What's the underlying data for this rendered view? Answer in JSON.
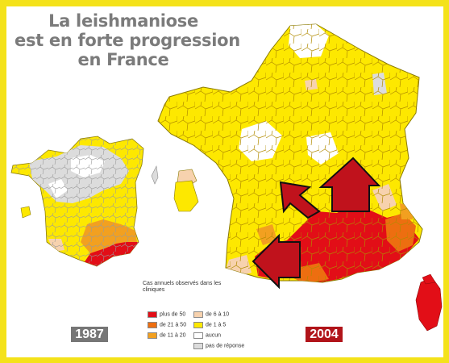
{
  "title": {
    "line1": "La leishmaniose",
    "line2": "est en forte progression",
    "line3": "en France"
  },
  "legend": {
    "title": "Cas annuels observés dans les cliniques",
    "items": [
      {
        "label": "plus de 50",
        "color": "#e20e17"
      },
      {
        "label": "de 21 à 50",
        "color": "#ed6e10"
      },
      {
        "label": "de 11 à 20",
        "color": "#f2a020"
      },
      {
        "label": "de 6 à 10",
        "color": "#f7d2ae"
      },
      {
        "label": "de 1 à 5",
        "color": "#fde800"
      },
      {
        "label": "aucun",
        "color": "#ffffff"
      },
      {
        "label": "pas de réponse",
        "color": "#dcdcdc"
      }
    ]
  },
  "maps": {
    "map_1987": {
      "year": "1987"
    },
    "map_2004": {
      "year": "2004"
    }
  },
  "colors": {
    "frame": "#f4e21a",
    "arrow": "#c0121c",
    "border_lines": "#b08a00"
  }
}
